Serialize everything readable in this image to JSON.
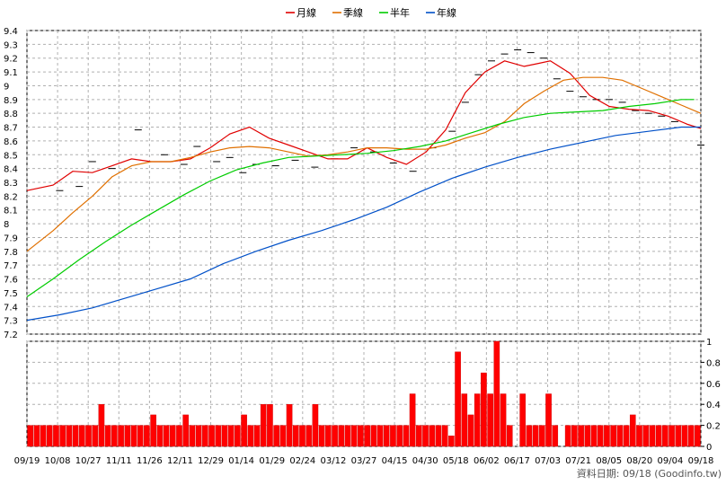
{
  "chart_data": {
    "type": "line",
    "legend": [
      {
        "name": "月線",
        "color": "#e00000"
      },
      {
        "name": "季線",
        "color": "#e07000"
      },
      {
        "name": "半年",
        "color": "#00cc00"
      },
      {
        "name": "年線",
        "color": "#0050c8"
      }
    ],
    "legend_position": "top-center",
    "grid": true,
    "price_axis": {
      "min": 7.2,
      "max": 9.4,
      "ticks": [
        "9.4",
        "9.3",
        "9.2",
        "9.1",
        "9",
        "8.9",
        "8.8",
        "8.7",
        "8.6",
        "8.5",
        "8.4",
        "8.3",
        "8.2",
        "8.1",
        "8",
        "7.9",
        "7.8",
        "7.7",
        "7.6",
        "7.5",
        "7.4",
        "7.3",
        "7.2"
      ]
    },
    "volume_axis": {
      "min": 0,
      "max": 1,
      "ticks": [
        "1",
        "0.8",
        "0.6",
        "0.4",
        "0.2",
        "0"
      ]
    },
    "x_ticks": [
      "09/19",
      "10/08",
      "10/27",
      "11/11",
      "11/26",
      "12/11",
      "12/29",
      "01/14",
      "01/29",
      "02/24",
      "03/12",
      "03/27",
      "04/15",
      "04/30",
      "05/18",
      "06/02",
      "06/17",
      "07/03",
      "07/21",
      "08/05",
      "08/20",
      "09/04",
      "09/18"
    ],
    "series": [
      {
        "name": "月線",
        "color": "#e00000",
        "points": [
          [
            0,
            8.24
          ],
          [
            4,
            8.28
          ],
          [
            7,
            8.38
          ],
          [
            10,
            8.37
          ],
          [
            13,
            8.42
          ],
          [
            16,
            8.47
          ],
          [
            19,
            8.45
          ],
          [
            22,
            8.45
          ],
          [
            25,
            8.47
          ],
          [
            28,
            8.55
          ],
          [
            31,
            8.65
          ],
          [
            34,
            8.7
          ],
          [
            37,
            8.62
          ],
          [
            40,
            8.57
          ],
          [
            43,
            8.52
          ],
          [
            46,
            8.47
          ],
          [
            49,
            8.47
          ],
          [
            52,
            8.55
          ],
          [
            55,
            8.48
          ],
          [
            58,
            8.43
          ],
          [
            61,
            8.52
          ],
          [
            64,
            8.68
          ],
          [
            67,
            8.95
          ],
          [
            70,
            9.1
          ],
          [
            73,
            9.18
          ],
          [
            76,
            9.14
          ],
          [
            78,
            9.16
          ],
          [
            80,
            9.18
          ],
          [
            83,
            9.09
          ],
          [
            86,
            8.93
          ],
          [
            89,
            8.85
          ],
          [
            92,
            8.83
          ],
          [
            95,
            8.82
          ],
          [
            98,
            8.78
          ],
          [
            101,
            8.72
          ],
          [
            103,
            8.69
          ]
        ]
      },
      {
        "name": "季線",
        "color": "#e07000",
        "points": [
          [
            0,
            7.8
          ],
          [
            4,
            7.95
          ],
          [
            7,
            8.08
          ],
          [
            10,
            8.2
          ],
          [
            13,
            8.34
          ],
          [
            16,
            8.42
          ],
          [
            19,
            8.45
          ],
          [
            22,
            8.45
          ],
          [
            25,
            8.48
          ],
          [
            28,
            8.52
          ],
          [
            31,
            8.55
          ],
          [
            34,
            8.56
          ],
          [
            37,
            8.55
          ],
          [
            40,
            8.52
          ],
          [
            43,
            8.49
          ],
          [
            46,
            8.5
          ],
          [
            49,
            8.52
          ],
          [
            52,
            8.55
          ],
          [
            55,
            8.55
          ],
          [
            58,
            8.54
          ],
          [
            61,
            8.54
          ],
          [
            64,
            8.57
          ],
          [
            67,
            8.62
          ],
          [
            70,
            8.66
          ],
          [
            73,
            8.74
          ],
          [
            76,
            8.87
          ],
          [
            79,
            8.96
          ],
          [
            82,
            9.04
          ],
          [
            85,
            9.06
          ],
          [
            88,
            9.06
          ],
          [
            91,
            9.04
          ],
          [
            94,
            8.98
          ],
          [
            97,
            8.92
          ],
          [
            100,
            8.86
          ],
          [
            103,
            8.8
          ]
        ]
      },
      {
        "name": "半年",
        "color": "#00cc00",
        "points": [
          [
            0,
            7.47
          ],
          [
            4,
            7.6
          ],
          [
            8,
            7.74
          ],
          [
            12,
            7.87
          ],
          [
            16,
            7.99
          ],
          [
            20,
            8.1
          ],
          [
            24,
            8.21
          ],
          [
            28,
            8.31
          ],
          [
            32,
            8.39
          ],
          [
            36,
            8.44
          ],
          [
            40,
            8.48
          ],
          [
            44,
            8.49
          ],
          [
            48,
            8.5
          ],
          [
            52,
            8.51
          ],
          [
            56,
            8.53
          ],
          [
            60,
            8.56
          ],
          [
            64,
            8.6
          ],
          [
            68,
            8.66
          ],
          [
            72,
            8.72
          ],
          [
            76,
            8.77
          ],
          [
            80,
            8.8
          ],
          [
            84,
            8.81
          ],
          [
            88,
            8.82
          ],
          [
            92,
            8.85
          ],
          [
            96,
            8.87
          ],
          [
            100,
            8.9
          ],
          [
            102,
            8.9
          ]
        ]
      },
      {
        "name": "年線",
        "color": "#0050c8",
        "points": [
          [
            0,
            7.3
          ],
          [
            5,
            7.34
          ],
          [
            10,
            7.39
          ],
          [
            15,
            7.46
          ],
          [
            20,
            7.53
          ],
          [
            25,
            7.6
          ],
          [
            30,
            7.71
          ],
          [
            35,
            7.8
          ],
          [
            40,
            7.88
          ],
          [
            45,
            7.95
          ],
          [
            50,
            8.03
          ],
          [
            55,
            8.12
          ],
          [
            60,
            8.23
          ],
          [
            65,
            8.33
          ],
          [
            70,
            8.41
          ],
          [
            75,
            8.48
          ],
          [
            80,
            8.54
          ],
          [
            85,
            8.59
          ],
          [
            90,
            8.64
          ],
          [
            95,
            8.67
          ],
          [
            100,
            8.7
          ],
          [
            103,
            8.7
          ]
        ]
      }
    ],
    "candles": [
      [
        5,
        8.24
      ],
      [
        8,
        8.27
      ],
      [
        10,
        8.45
      ],
      [
        13,
        8.4
      ],
      [
        17,
        8.68
      ],
      [
        21,
        8.5
      ],
      [
        24,
        8.43
      ],
      [
        26,
        8.56
      ],
      [
        29,
        8.45
      ],
      [
        31,
        8.48
      ],
      [
        33,
        8.37
      ],
      [
        35,
        8.43
      ],
      [
        38,
        8.42
      ],
      [
        41,
        8.46
      ],
      [
        44,
        8.41
      ],
      [
        47,
        8.47
      ],
      [
        50,
        8.55
      ],
      [
        53,
        8.52
      ],
      [
        56,
        8.44
      ],
      [
        59,
        8.38
      ],
      [
        62,
        8.55
      ],
      [
        65,
        8.67
      ],
      [
        67,
        8.88
      ],
      [
        69,
        9.08
      ],
      [
        71,
        9.18
      ],
      [
        73,
        9.23
      ],
      [
        75,
        9.26
      ],
      [
        77,
        9.24
      ],
      [
        79,
        9.2
      ],
      [
        81,
        9.05
      ],
      [
        83,
        8.96
      ],
      [
        85,
        8.92
      ],
      [
        87,
        8.9
      ],
      [
        89,
        8.9
      ],
      [
        91,
        8.88
      ],
      [
        93,
        8.82
      ],
      [
        95,
        8.8
      ],
      [
        97,
        8.78
      ],
      [
        99,
        8.74
      ],
      [
        101,
        8.7
      ],
      [
        103,
        8.57
      ]
    ],
    "volume": {
      "baseline": 0.2,
      "spikes": [
        [
          11,
          0.4
        ],
        [
          19,
          0.3
        ],
        [
          24,
          0.3
        ],
        [
          33,
          0.3
        ],
        [
          36,
          0.4
        ],
        [
          37,
          0.4
        ],
        [
          40,
          0.4
        ],
        [
          44,
          0.4
        ],
        [
          59,
          0.5
        ],
        [
          65,
          0.3
        ],
        [
          66,
          0.9
        ],
        [
          67,
          0.5
        ],
        [
          68,
          0.3
        ],
        [
          69,
          0.5
        ],
        [
          70,
          0.7
        ],
        [
          71,
          0.5
        ],
        [
          72,
          1.0
        ],
        [
          73,
          0.5
        ],
        [
          76,
          0.5
        ],
        [
          80,
          0.5
        ],
        [
          93,
          0.3
        ]
      ],
      "gaps": [
        [
          65,
          0.1
        ],
        [
          75,
          0.0
        ],
        [
          82,
          0.0
        ]
      ]
    },
    "footer": "資料日期: 09/18  (Goodinfo.tw)"
  }
}
